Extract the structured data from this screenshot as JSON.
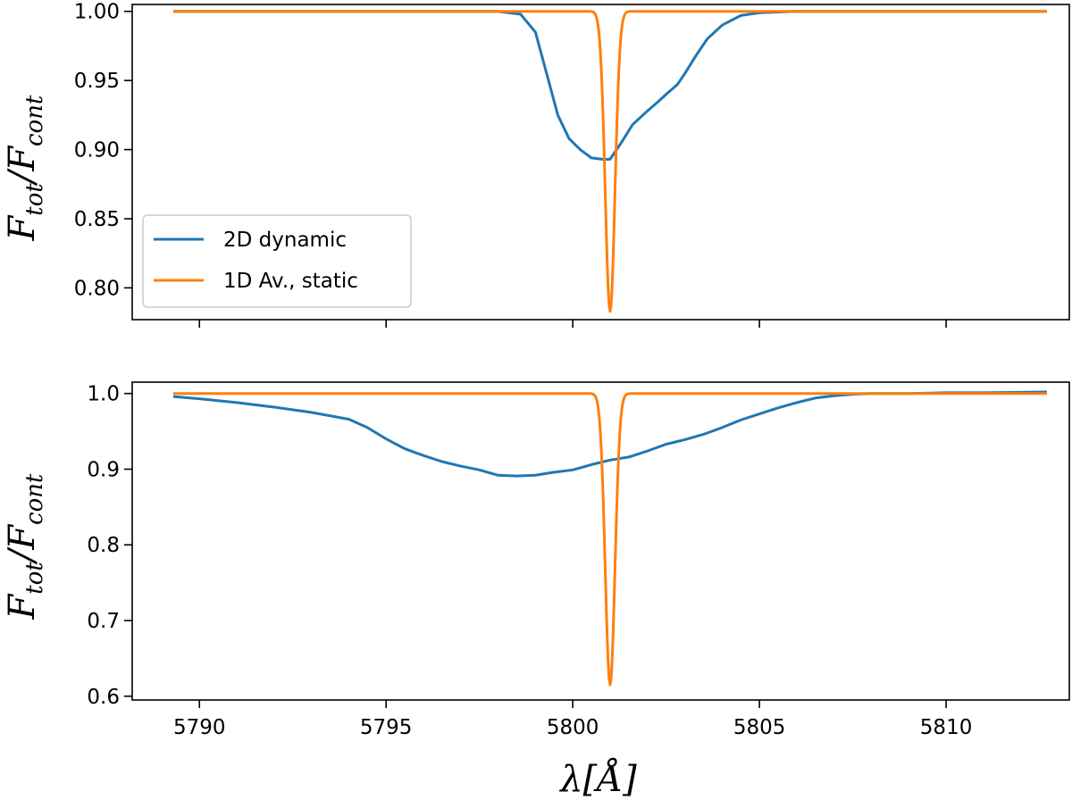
{
  "colors": {
    "series_2d": "#1f77b4",
    "series_1d": "#ff7f0e"
  },
  "axes_labels": {
    "y_main": "F",
    "y_sub1": "tot",
    "y_slash": "/F",
    "y_sub2": "cont",
    "x": "λ[Å]"
  },
  "chart_data": [
    {
      "type": "line",
      "panel": "top",
      "xlim": [
        5788.2,
        5813.3
      ],
      "ylim": [
        0.777,
        1.005
      ],
      "xticks": [
        5790,
        5795,
        5800,
        5805,
        5810
      ],
      "yticks": [
        0.8,
        0.85,
        0.9,
        0.95,
        1.0
      ],
      "ytick_labels": [
        "0.80",
        "0.85",
        "0.90",
        "0.95",
        "1.00"
      ],
      "show_xtick_labels": false,
      "legend": {
        "placement": "lower-left",
        "entries": [
          "2D dynamic",
          "1D Av., static"
        ]
      },
      "series": [
        {
          "name": "2D dynamic",
          "color": "#1f77b4",
          "x": [
            5789.3,
            5798.0,
            5798.6,
            5799.0,
            5799.3,
            5799.6,
            5799.9,
            5800.2,
            5800.5,
            5800.8,
            5801.0,
            5801.3,
            5801.6,
            5802.0,
            5802.3,
            5802.5,
            5802.8,
            5803.0,
            5803.3,
            5803.6,
            5804.0,
            5804.5,
            5805.0,
            5806.0,
            5812.7
          ],
          "y": [
            1.0,
            1.0,
            0.998,
            0.985,
            0.955,
            0.925,
            0.908,
            0.9,
            0.894,
            0.893,
            0.893,
            0.905,
            0.918,
            0.928,
            0.935,
            0.94,
            0.947,
            0.955,
            0.968,
            0.98,
            0.99,
            0.997,
            0.999,
            1.0,
            1.0
          ]
        },
        {
          "name": "1D Av., static",
          "color": "#ff7f0e",
          "line_center": 5801.0,
          "line_depth": 0.217,
          "line_sigma": 0.13,
          "x_range": [
            5789.3,
            5812.7
          ],
          "continuum": 1.0
        }
      ]
    },
    {
      "type": "line",
      "panel": "bottom",
      "xlim": [
        5788.2,
        5813.3
      ],
      "ylim": [
        0.595,
        1.015
      ],
      "xticks": [
        5790,
        5795,
        5800,
        5805,
        5810
      ],
      "xtick_labels": [
        "5790",
        "5795",
        "5800",
        "5805",
        "5810"
      ],
      "yticks": [
        0.6,
        0.7,
        0.8,
        0.9,
        1.0
      ],
      "ytick_labels": [
        "0.6",
        "0.7",
        "0.8",
        "0.9",
        "1.0"
      ],
      "show_xtick_labels": true,
      "series": [
        {
          "name": "2D dynamic",
          "color": "#1f77b4",
          "x": [
            5789.3,
            5790.0,
            5791.0,
            5792.0,
            5793.0,
            5794.0,
            5794.5,
            5795.0,
            5795.5,
            5796.0,
            5796.5,
            5797.0,
            5797.5,
            5798.0,
            5798.5,
            5799.0,
            5799.5,
            5800.0,
            5800.5,
            5801.0,
            5801.5,
            5802.0,
            5802.5,
            5803.0,
            5803.5,
            5804.0,
            5804.5,
            5805.0,
            5805.5,
            5806.0,
            5806.5,
            5807.0,
            5807.5,
            5808.0,
            5809.0,
            5810.0,
            5811.0,
            5812.7
          ],
          "y": [
            0.996,
            0.993,
            0.988,
            0.982,
            0.975,
            0.966,
            0.955,
            0.94,
            0.927,
            0.918,
            0.91,
            0.904,
            0.899,
            0.892,
            0.891,
            0.892,
            0.896,
            0.899,
            0.906,
            0.912,
            0.916,
            0.924,
            0.933,
            0.939,
            0.946,
            0.955,
            0.965,
            0.973,
            0.981,
            0.988,
            0.994,
            0.997,
            0.999,
            1.0,
            1.0,
            1.001,
            1.001,
            1.002
          ]
        },
        {
          "name": "1D Av., static",
          "color": "#ff7f0e",
          "line_center": 5801.0,
          "line_depth": 0.385,
          "line_sigma": 0.13,
          "x_range": [
            5789.3,
            5812.7
          ],
          "continuum": 1.0
        }
      ]
    }
  ]
}
